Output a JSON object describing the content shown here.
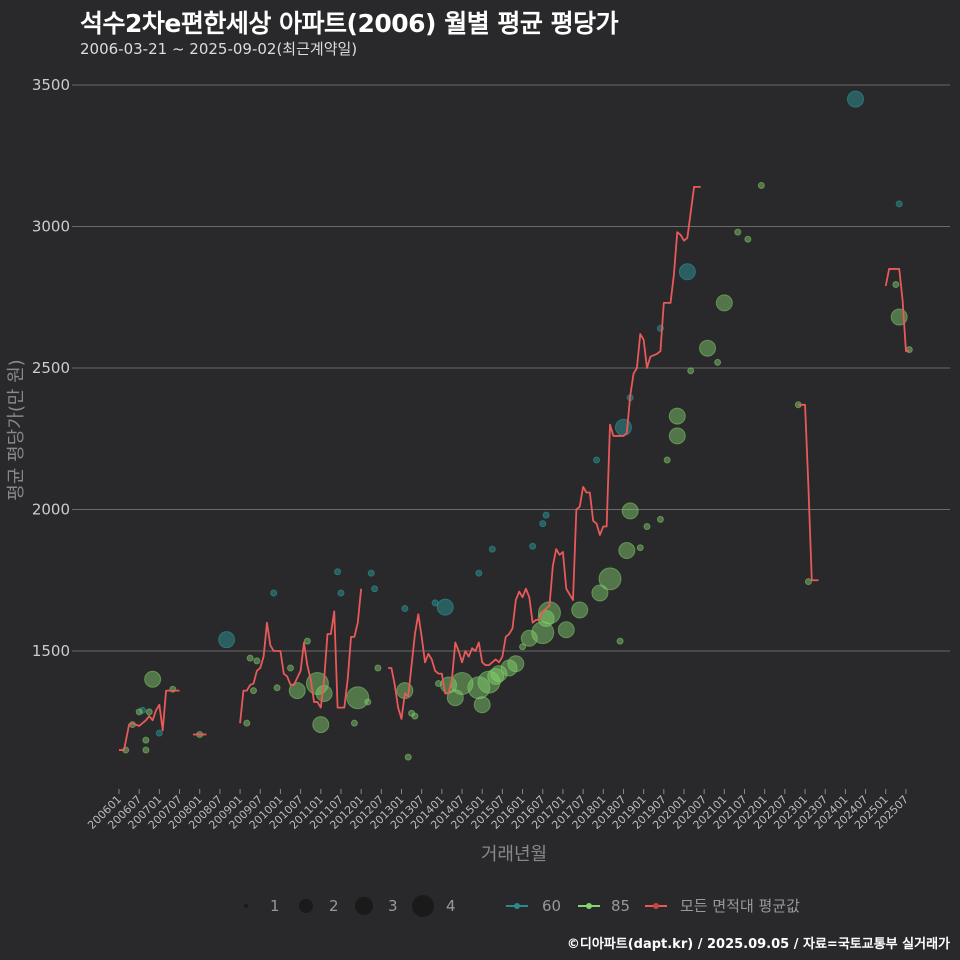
{
  "title": "석수2차e편한세상 아파트(2006) 월별 평균 평당가",
  "subtitle": "2006-03-21 ~ 2025-09-02(최근계약일)",
  "footer": "©디아파트(dapt.kr) / 2025.09.05 / 자료=국토교통부 실거래가",
  "colors": {
    "bg": "#29282a",
    "area60": "#2b8a8c",
    "area85": "#86d46e",
    "avg": "#e85a5a",
    "grid": "#6a6a6a"
  },
  "chart_data": {
    "type": "line+scatter",
    "xlabel": "거래년월",
    "ylabel": "평균 평당가(만 원)",
    "x_start": "200601",
    "yticks": [
      1500,
      2000,
      2500,
      3000,
      3500
    ],
    "ytick_labels": [
      "1500",
      "2000",
      "2500",
      "3000",
      "3500"
    ],
    "ylim": [
      1000,
      3550
    ],
    "xtick_labels": [
      "200601",
      "200607",
      "200701",
      "200707",
      "200801",
      "200807",
      "200901",
      "200907",
      "201001",
      "201007",
      "201101",
      "201107",
      "201201",
      "201207",
      "201301",
      "201307",
      "201401",
      "201407",
      "201501",
      "201507",
      "201601",
      "201607",
      "201701",
      "201707",
      "201801",
      "201807",
      "201901",
      "201907",
      "202001",
      "202007",
      "202101",
      "202107",
      "202201",
      "202207",
      "202301",
      "202307",
      "202401",
      "202407",
      "202501",
      "202507"
    ],
    "legend": {
      "sizes": [
        "1",
        "2",
        "3",
        "4"
      ],
      "series": [
        "60",
        "85",
        "모든 면적대 평균값"
      ],
      "placement": "bottom"
    },
    "avg_line_segments": [
      [
        [
          0,
          1150
        ],
        [
          1.5,
          1150
        ],
        [
          3,
          1240
        ],
        [
          4,
          1245
        ],
        [
          6,
          1235
        ],
        [
          8,
          1255
        ],
        [
          9,
          1270
        ],
        [
          10,
          1255
        ],
        [
          11,
          1290
        ],
        [
          12,
          1310
        ],
        [
          13,
          1220
        ],
        [
          14,
          1360
        ],
        [
          18,
          1360
        ]
      ],
      [
        [
          22,
          1205
        ],
        [
          26,
          1205
        ]
      ],
      [
        [
          36,
          1245
        ],
        [
          37,
          1360
        ],
        [
          38,
          1360
        ],
        [
          39,
          1380
        ],
        [
          40,
          1385
        ],
        [
          41,
          1430
        ],
        [
          42,
          1440
        ],
        [
          43,
          1480
        ],
        [
          44,
          1600
        ],
        [
          45,
          1520
        ],
        [
          46,
          1500
        ],
        [
          48,
          1500
        ],
        [
          49,
          1420
        ],
        [
          50,
          1410
        ],
        [
          51,
          1380
        ],
        [
          52,
          1380
        ],
        [
          54,
          1430
        ],
        [
          55,
          1530
        ],
        [
          56,
          1450
        ],
        [
          57,
          1400
        ],
        [
          58,
          1320
        ],
        [
          59,
          1320
        ],
        [
          60,
          1300
        ],
        [
          61,
          1400
        ],
        [
          62,
          1560
        ],
        [
          63,
          1560
        ],
        [
          64,
          1640
        ],
        [
          65,
          1300
        ],
        [
          67,
          1300
        ],
        [
          68,
          1400
        ],
        [
          69,
          1550
        ],
        [
          70,
          1550
        ],
        [
          71,
          1600
        ],
        [
          72,
          1720
        ]
      ],
      [
        [
          80,
          1440
        ],
        [
          81,
          1440
        ],
        [
          82,
          1380
        ],
        [
          83,
          1300
        ],
        [
          84,
          1260
        ],
        [
          85,
          1350
        ],
        [
          86,
          1340
        ],
        [
          87,
          1450
        ],
        [
          88,
          1560
        ],
        [
          89,
          1630
        ],
        [
          90,
          1550
        ],
        [
          91,
          1460
        ],
        [
          92,
          1490
        ],
        [
          93,
          1470
        ],
        [
          94,
          1430
        ],
        [
          95,
          1420
        ],
        [
          96,
          1420
        ],
        [
          97,
          1350
        ],
        [
          98,
          1350
        ],
        [
          99,
          1400
        ],
        [
          100,
          1530
        ],
        [
          101,
          1500
        ],
        [
          102,
          1460
        ],
        [
          103,
          1500
        ],
        [
          104,
          1480
        ],
        [
          105,
          1510
        ],
        [
          106,
          1500
        ],
        [
          107,
          1530
        ],
        [
          108,
          1460
        ],
        [
          109,
          1450
        ],
        [
          110,
          1450
        ],
        [
          111,
          1460
        ],
        [
          112,
          1470
        ],
        [
          113,
          1460
        ],
        [
          114,
          1480
        ],
        [
          115,
          1550
        ],
        [
          116,
          1560
        ],
        [
          117,
          1580
        ],
        [
          118,
          1680
        ],
        [
          119,
          1710
        ],
        [
          120,
          1690
        ],
        [
          121,
          1720
        ],
        [
          122,
          1690
        ],
        [
          123,
          1600
        ],
        [
          124,
          1610
        ],
        [
          125,
          1610
        ],
        [
          126,
          1640
        ],
        [
          127,
          1650
        ],
        [
          128,
          1660
        ],
        [
          129,
          1800
        ],
        [
          130,
          1860
        ],
        [
          131,
          1840
        ],
        [
          132,
          1850
        ],
        [
          133,
          1720
        ],
        [
          134,
          1700
        ],
        [
          135,
          1680
        ],
        [
          136,
          2000
        ],
        [
          137,
          2010
        ],
        [
          138,
          2080
        ],
        [
          139,
          2060
        ],
        [
          140,
          2060
        ],
        [
          141,
          1960
        ],
        [
          142,
          1950
        ],
        [
          143,
          1910
        ],
        [
          144,
          1940
        ],
        [
          145,
          1940
        ],
        [
          146,
          2300
        ],
        [
          147,
          2260
        ],
        [
          150,
          2260
        ],
        [
          151,
          2270
        ],
        [
          152,
          2400
        ],
        [
          153,
          2480
        ],
        [
          154,
          2500
        ],
        [
          155,
          2620
        ],
        [
          156,
          2600
        ],
        [
          157,
          2500
        ],
        [
          158,
          2540
        ],
        [
          160,
          2550
        ],
        [
          161,
          2560
        ],
        [
          162,
          2730
        ],
        [
          164,
          2730
        ],
        [
          165,
          2830
        ],
        [
          166,
          2980
        ],
        [
          167,
          2970
        ],
        [
          168,
          2950
        ],
        [
          169,
          2960
        ],
        [
          170,
          3050
        ],
        [
          171,
          3140
        ],
        [
          173,
          3140
        ]
      ],
      [
        [
          202,
          2370
        ],
        [
          204,
          2370
        ],
        [
          205,
          2080
        ],
        [
          206,
          1750
        ],
        [
          208,
          1750
        ]
      ],
      [
        [
          228,
          2790
        ],
        [
          229,
          2850
        ],
        [
          232,
          2850
        ],
        [
          233,
          2740
        ],
        [
          234,
          2560
        ],
        [
          235,
          2560
        ]
      ]
    ],
    "points_60": [
      [
        7,
        1290,
        1
      ],
      [
        12,
        1210,
        1
      ],
      [
        32,
        1540,
        2
      ],
      [
        46,
        1705,
        1
      ],
      [
        65,
        1780,
        1
      ],
      [
        66,
        1705,
        1
      ],
      [
        75,
        1775,
        1
      ],
      [
        76,
        1720,
        1
      ],
      [
        85,
        1650,
        1
      ],
      [
        94,
        1670,
        1
      ],
      [
        97,
        1655,
        2
      ],
      [
        107,
        1775,
        1
      ],
      [
        111,
        1860,
        1
      ],
      [
        123,
        1870,
        1
      ],
      [
        126,
        1950,
        1
      ],
      [
        127,
        1980,
        1
      ],
      [
        142,
        2175,
        1
      ],
      [
        150,
        2290,
        2
      ],
      [
        152,
        2395,
        1
      ],
      [
        161,
        2640,
        1
      ],
      [
        169,
        2840,
        2
      ],
      [
        219,
        3450,
        2
      ],
      [
        232,
        3080,
        1
      ]
    ],
    "points_85": [
      [
        2,
        1150,
        1
      ],
      [
        4,
        1240,
        1
      ],
      [
        6,
        1285,
        1
      ],
      [
        8,
        1185,
        1
      ],
      [
        8,
        1150,
        1
      ],
      [
        9,
        1285,
        1
      ],
      [
        10,
        1400,
        2
      ],
      [
        16,
        1365,
        1
      ],
      [
        24,
        1205,
        1
      ],
      [
        38,
        1245,
        1
      ],
      [
        39,
        1475,
        1
      ],
      [
        40,
        1360,
        1
      ],
      [
        41,
        1465,
        1
      ],
      [
        47,
        1370,
        1
      ],
      [
        51,
        1440,
        1
      ],
      [
        53,
        1360,
        2
      ],
      [
        56,
        1535,
        1
      ],
      [
        59,
        1385,
        3
      ],
      [
        60,
        1240,
        2
      ],
      [
        61,
        1350,
        2
      ],
      [
        70,
        1245,
        1
      ],
      [
        71,
        1335,
        3
      ],
      [
        74,
        1320,
        1
      ],
      [
        77,
        1440,
        1
      ],
      [
        85,
        1360,
        2
      ],
      [
        86,
        1125,
        1
      ],
      [
        87,
        1280,
        1
      ],
      [
        88,
        1270,
        1
      ],
      [
        95,
        1385,
        1
      ],
      [
        98,
        1380,
        2
      ],
      [
        100,
        1335,
        2
      ],
      [
        102,
        1385,
        3
      ],
      [
        107,
        1370,
        3
      ],
      [
        108,
        1310,
        2
      ],
      [
        110,
        1390,
        3
      ],
      [
        112,
        1410,
        2
      ],
      [
        113,
        1420,
        2
      ],
      [
        116,
        1440,
        2
      ],
      [
        118,
        1455,
        2
      ],
      [
        120,
        1515,
        1
      ],
      [
        122,
        1545,
        2
      ],
      [
        126,
        1565,
        3
      ],
      [
        127,
        1615,
        2
      ],
      [
        128,
        1635,
        3
      ],
      [
        133,
        1575,
        2
      ],
      [
        137,
        1645,
        2
      ],
      [
        143,
        1705,
        2
      ],
      [
        146,
        1755,
        3
      ],
      [
        149,
        1535,
        1
      ],
      [
        151,
        1855,
        2
      ],
      [
        152,
        1995,
        2
      ],
      [
        155,
        1865,
        1
      ],
      [
        157,
        1940,
        1
      ],
      [
        161,
        1965,
        1
      ],
      [
        163,
        2175,
        1
      ],
      [
        166,
        2260,
        2
      ],
      [
        166,
        2330,
        2
      ],
      [
        170,
        2490,
        1
      ],
      [
        175,
        2570,
        2
      ],
      [
        178,
        2520,
        1
      ],
      [
        180,
        2730,
        2
      ],
      [
        184,
        2980,
        1
      ],
      [
        187,
        2955,
        1
      ],
      [
        191,
        3145,
        1
      ],
      [
        202,
        2370,
        1
      ],
      [
        205,
        1745,
        1
      ],
      [
        231,
        2795,
        1
      ],
      [
        232,
        2680,
        2
      ],
      [
        235,
        2565,
        1
      ]
    ]
  }
}
